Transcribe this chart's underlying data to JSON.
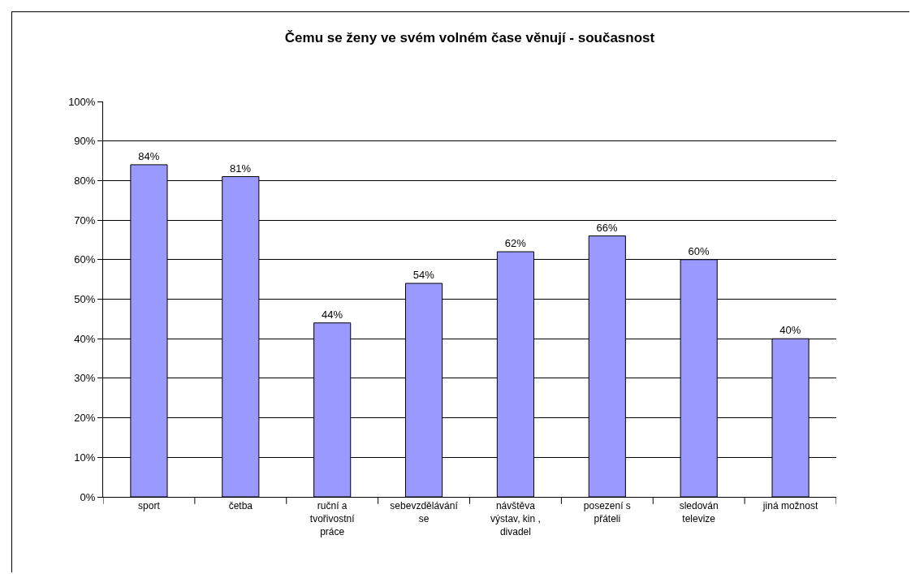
{
  "chart_data": {
    "type": "bar",
    "title": "Čemu se ženy ve svém volném čase věnují - současnost",
    "categories": [
      "sport",
      "četba",
      "ruční a tvořivostní práce",
      "sebevzdělávání se",
      "návštěva výstav, kin , divadel",
      "posezení s přáteli",
      "sledován televize",
      "jiná možnost"
    ],
    "values": [
      84,
      81,
      44,
      54,
      62,
      66,
      60,
      40
    ],
    "value_labels": [
      "84%",
      "81%",
      "44%",
      "54%",
      "62%",
      "66%",
      "60%",
      "40%"
    ],
    "color": "#9999ff",
    "ylim": [
      0,
      100
    ],
    "yticks": [
      {
        "value": 0,
        "label": "0%"
      },
      {
        "value": 10,
        "label": "10%"
      },
      {
        "value": 20,
        "label": "20%"
      },
      {
        "value": 30,
        "label": "30%"
      },
      {
        "value": 40,
        "label": "40%"
      },
      {
        "value": 50,
        "label": "50%"
      },
      {
        "value": 60,
        "label": "60%"
      },
      {
        "value": 70,
        "label": "70%"
      },
      {
        "value": 80,
        "label": "80%"
      },
      {
        "value": 90,
        "label": "90%"
      },
      {
        "value": 100,
        "label": "100%"
      }
    ],
    "grid": "y"
  }
}
